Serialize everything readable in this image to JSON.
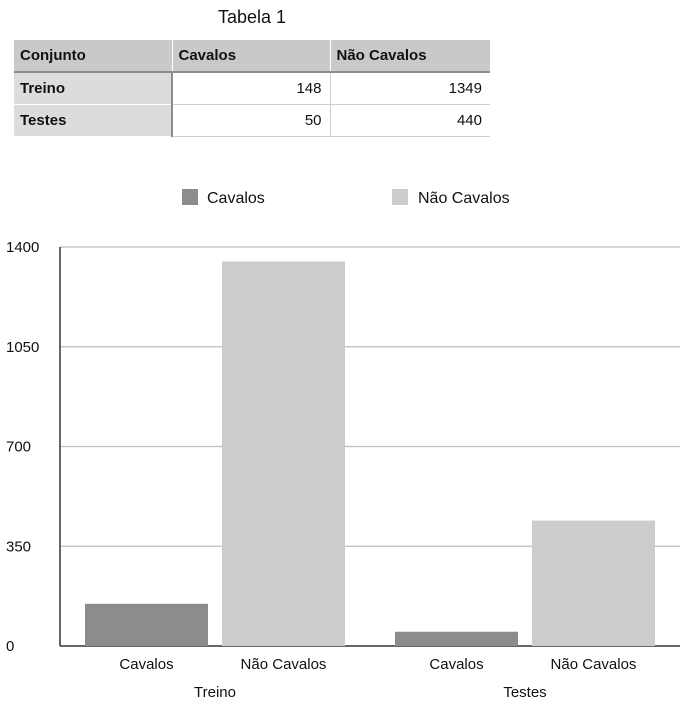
{
  "table": {
    "title": "Tabela 1",
    "headers": [
      "Conjunto",
      "Cavalos",
      "Não Cavalos"
    ],
    "rows": [
      {
        "label": "Treino",
        "values": [
          "148",
          "1349"
        ]
      },
      {
        "label": "Testes",
        "values": [
          "50",
          "440"
        ]
      }
    ]
  },
  "chart_data": {
    "type": "bar",
    "title": "",
    "xlabel": "",
    "ylabel": "",
    "groups": [
      "Treino",
      "Testes"
    ],
    "bar_labels": [
      "Cavalos",
      "Não Cavalos"
    ],
    "series": [
      {
        "name": "Cavalos",
        "color": "#8c8c8c",
        "values": [
          148,
          50
        ]
      },
      {
        "name": "Não Cavalos",
        "color": "#cccccc",
        "values": [
          1349,
          440
        ]
      }
    ],
    "ylim": [
      0,
      1400
    ],
    "yticks": [
      0,
      350,
      700,
      1050,
      1400
    ],
    "grid": true,
    "legend": "top-center"
  }
}
